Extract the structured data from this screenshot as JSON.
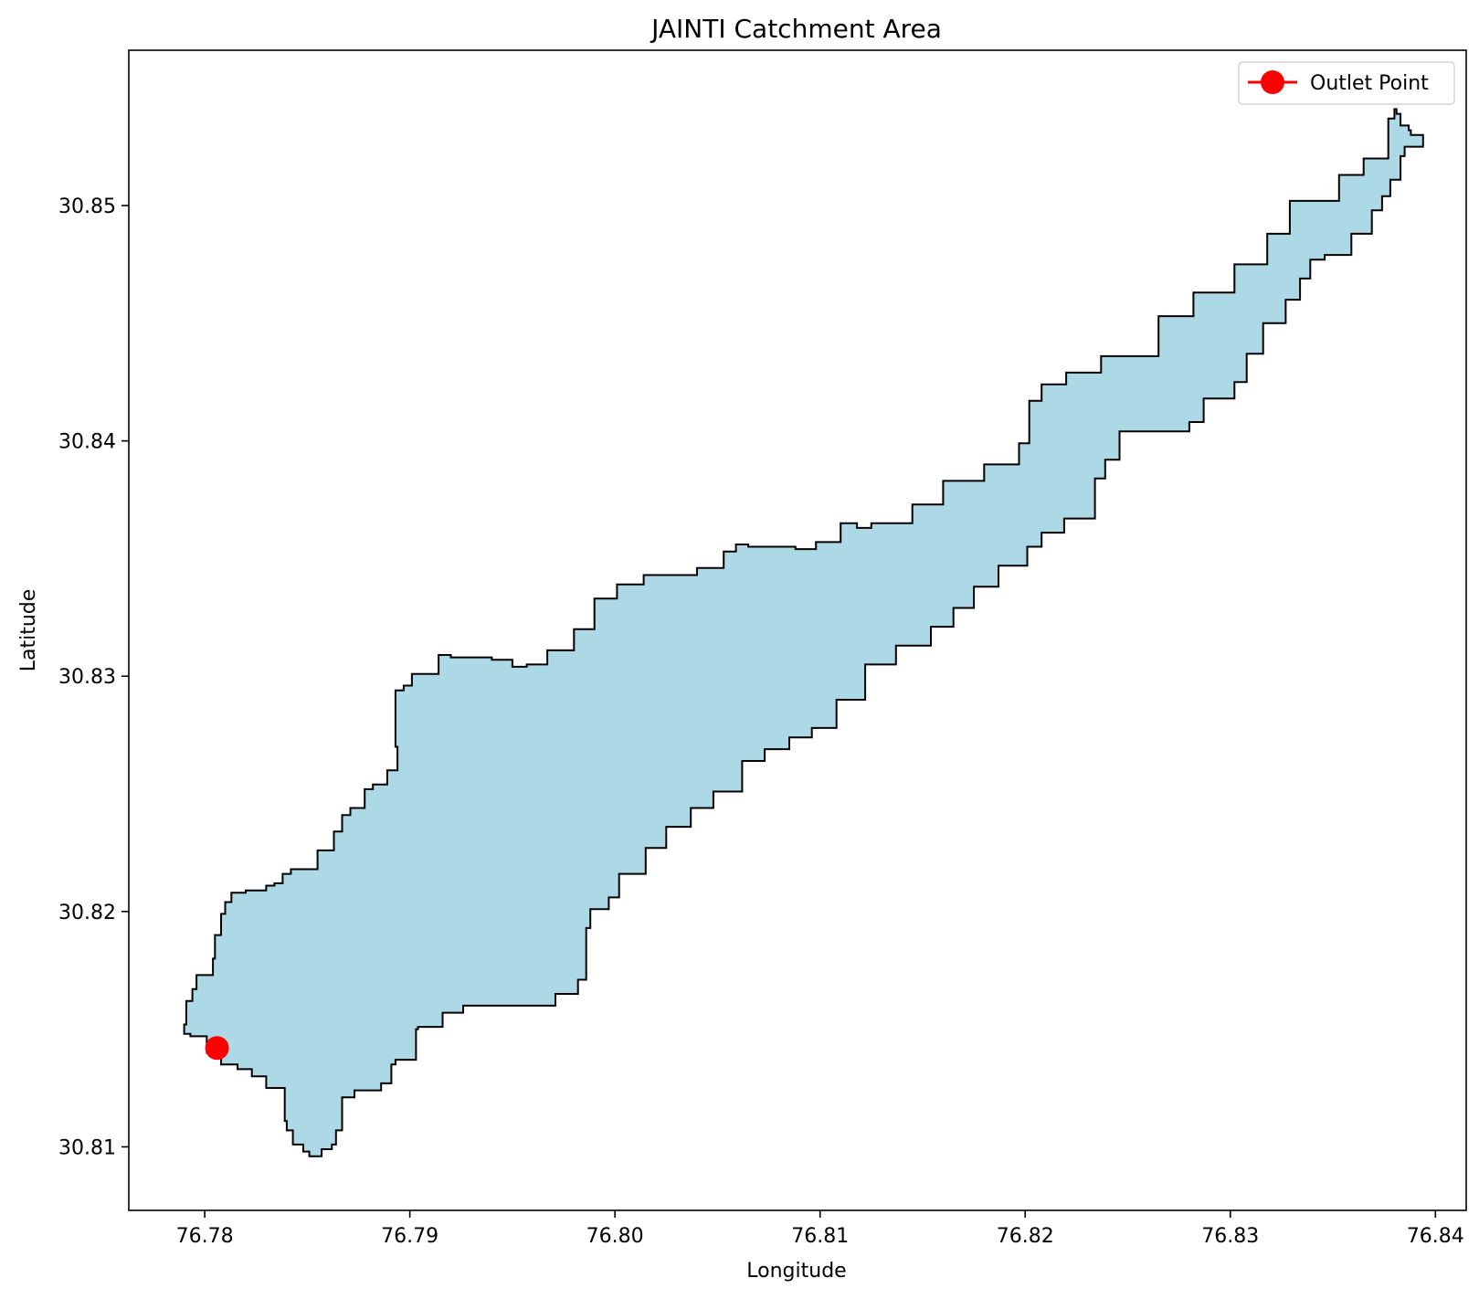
{
  "chart_data": {
    "type": "map",
    "title": "JAINTI Catchment Area",
    "xlabel": "Longitude",
    "ylabel": "Latitude",
    "xlim": [
      76.7763,
      76.8415
    ],
    "ylim": [
      30.8073,
      30.8566
    ],
    "xticks": [
      76.78,
      76.79,
      76.8,
      76.81,
      76.82,
      76.83,
      76.84
    ],
    "xtick_labels": [
      "76.78",
      "76.79",
      "76.80",
      "76.81",
      "76.82",
      "76.83",
      "76.84"
    ],
    "yticks": [
      30.81,
      30.82,
      30.83,
      30.84,
      30.85
    ],
    "ytick_labels": [
      "30.81",
      "30.82",
      "30.83",
      "30.84",
      "30.85"
    ],
    "grid": false,
    "legend": {
      "position": "top-right",
      "entries": [
        {
          "label": "Outlet Point",
          "marker": "circle",
          "color": "#ff0000"
        }
      ]
    },
    "catchment": {
      "fill": "#add8e6",
      "edge": "#000000",
      "boundary": [
        [
          76.779,
          30.8152
        ],
        [
          76.7791,
          30.8162
        ],
        [
          76.7794,
          30.8167
        ],
        [
          76.7796,
          30.8173
        ],
        [
          76.78,
          30.8173
        ],
        [
          76.7804,
          30.818
        ],
        [
          76.7805,
          30.819
        ],
        [
          76.7808,
          30.8199
        ],
        [
          76.781,
          30.8204
        ],
        [
          76.7813,
          30.8208
        ],
        [
          76.782,
          30.8209
        ],
        [
          76.7827,
          30.8209
        ],
        [
          76.783,
          30.8211
        ],
        [
          76.7834,
          30.8212
        ],
        [
          76.7838,
          30.8216
        ],
        [
          76.7842,
          30.8218
        ],
        [
          76.7855,
          30.8226
        ],
        [
          76.7863,
          30.8234
        ],
        [
          76.7867,
          30.8241
        ],
        [
          76.7871,
          30.8244
        ],
        [
          76.7878,
          30.8252
        ],
        [
          76.7882,
          30.8254
        ],
        [
          76.7889,
          30.826
        ],
        [
          76.7894,
          30.827
        ],
        [
          76.7893,
          30.8294
        ],
        [
          76.7897,
          30.8296
        ],
        [
          76.7901,
          30.8301
        ],
        [
          76.7914,
          30.8309
        ],
        [
          76.792,
          30.8308
        ],
        [
          76.794,
          30.8307
        ],
        [
          76.795,
          30.8304
        ],
        [
          76.7957,
          30.8305
        ],
        [
          76.7967,
          30.8311
        ],
        [
          76.798,
          30.832
        ],
        [
          76.799,
          30.8333
        ],
        [
          76.8001,
          30.8339
        ],
        [
          76.8014,
          30.8343
        ],
        [
          76.804,
          30.8346
        ],
        [
          76.8053,
          30.8353
        ],
        [
          76.8059,
          30.8356
        ],
        [
          76.8065,
          30.8355
        ],
        [
          76.8088,
          30.8354
        ],
        [
          76.8098,
          30.8357
        ],
        [
          76.811,
          30.8365
        ],
        [
          76.8118,
          30.8363
        ],
        [
          76.8125,
          30.8365
        ],
        [
          76.8145,
          30.8373
        ],
        [
          76.816,
          30.8383
        ],
        [
          76.818,
          30.839
        ],
        [
          76.8197,
          30.8399
        ],
        [
          76.8202,
          30.8417
        ],
        [
          76.8208,
          30.8424
        ],
        [
          76.822,
          30.8429
        ],
        [
          76.8237,
          30.8436
        ],
        [
          76.8265,
          30.8453
        ],
        [
          76.8282,
          30.8463
        ],
        [
          76.8302,
          30.8475
        ],
        [
          76.8318,
          30.8488
        ],
        [
          76.8329,
          30.8502
        ],
        [
          76.8353,
          30.8513
        ],
        [
          76.8365,
          30.852
        ],
        [
          76.8377,
          30.8537
        ],
        [
          76.838,
          30.8541
        ],
        [
          76.8381,
          30.8539
        ],
        [
          76.8383,
          30.8534
        ],
        [
          76.8387,
          30.8532
        ],
        [
          76.8388,
          30.853
        ],
        [
          76.8394,
          30.8528
        ],
        [
          76.8394,
          30.8525
        ],
        [
          76.839,
          30.8525
        ],
        [
          76.8385,
          30.8521
        ],
        [
          76.8383,
          30.8511
        ],
        [
          76.8378,
          30.8504
        ],
        [
          76.8374,
          30.8498
        ],
        [
          76.8369,
          30.8488
        ],
        [
          76.8359,
          30.8479
        ],
        [
          76.8346,
          30.8477
        ],
        [
          76.8339,
          30.8469
        ],
        [
          76.8334,
          30.846
        ],
        [
          76.8327,
          30.845
        ],
        [
          76.8316,
          30.8437
        ],
        [
          76.8308,
          30.8425
        ],
        [
          76.8302,
          30.8418
        ],
        [
          76.8287,
          30.8408
        ],
        [
          76.828,
          30.8404
        ],
        [
          76.8253,
          30.8404
        ],
        [
          76.8246,
          30.8392
        ],
        [
          76.8239,
          30.8384
        ],
        [
          76.8234,
          30.8367
        ],
        [
          76.8219,
          30.8361
        ],
        [
          76.8208,
          30.8355
        ],
        [
          76.8201,
          30.8347
        ],
        [
          76.8187,
          30.8338
        ],
        [
          76.8175,
          30.8329
        ],
        [
          76.8165,
          30.8321
        ],
        [
          76.8154,
          30.8313
        ],
        [
          76.8137,
          30.8305
        ],
        [
          76.8122,
          30.829
        ],
        [
          76.8108,
          30.8278
        ],
        [
          76.8096,
          30.8274
        ],
        [
          76.8085,
          30.8269
        ],
        [
          76.8073,
          30.8264
        ],
        [
          76.8062,
          30.8251
        ],
        [
          76.8048,
          30.8244
        ],
        [
          76.8037,
          30.8236
        ],
        [
          76.8025,
          30.8227
        ],
        [
          76.8015,
          30.8216
        ],
        [
          76.8002,
          30.8206
        ],
        [
          76.7997,
          30.8201
        ],
        [
          76.7988,
          30.8193
        ],
        [
          76.7986,
          30.8185
        ],
        [
          76.7986,
          30.8171
        ],
        [
          76.7982,
          30.8165
        ],
        [
          76.7971,
          30.816
        ],
        [
          76.795,
          30.816
        ],
        [
          76.7938,
          30.816
        ],
        [
          76.7926,
          30.8157
        ],
        [
          76.7916,
          30.8151
        ],
        [
          76.7904,
          30.815
        ],
        [
          76.7903,
          30.8137
        ],
        [
          76.7893,
          30.8135
        ],
        [
          76.7891,
          30.8127
        ],
        [
          76.7886,
          30.8124
        ],
        [
          76.7877,
          30.8124
        ],
        [
          76.7873,
          30.8121
        ],
        [
          76.7867,
          30.8119
        ],
        [
          76.7867,
          30.8107
        ],
        [
          76.7864,
          30.8101
        ],
        [
          76.7862,
          30.8099
        ],
        [
          76.7857,
          30.8096
        ],
        [
          76.7851,
          30.8098
        ],
        [
          76.7848,
          30.8101
        ],
        [
          76.7843,
          30.8107
        ],
        [
          76.784,
          30.8111
        ],
        [
          76.7839,
          30.8125
        ],
        [
          76.783,
          30.813
        ],
        [
          76.7823,
          30.8133
        ],
        [
          76.7816,
          30.8135
        ],
        [
          76.7808,
          30.814
        ],
        [
          76.7801,
          30.8147
        ],
        [
          76.7793,
          30.8148
        ],
        [
          76.779,
          30.8152
        ]
      ]
    },
    "outlet_point": {
      "label": "Outlet Point",
      "x": 76.7806,
      "y": 30.8142,
      "color": "#ff0000"
    }
  }
}
